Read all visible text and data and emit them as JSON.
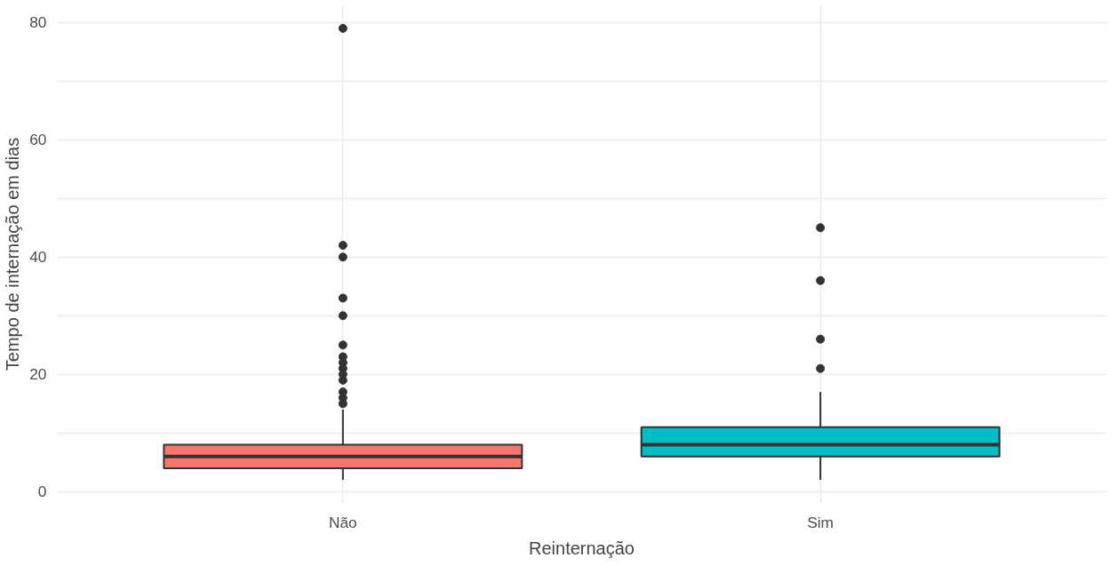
{
  "chart_data": {
    "type": "box",
    "xlabel": "Reinternação",
    "ylabel": "Tempo de internação em dias",
    "categories": [
      "Não",
      "Sim"
    ],
    "colors": [
      "#f8766d",
      "#00bfc4"
    ],
    "boxes": [
      {
        "low": 2,
        "q1": 4,
        "median": 6,
        "q3": 8,
        "high": 14,
        "outliers": [
          79,
          42,
          40,
          33,
          30,
          25,
          23,
          22,
          21,
          20,
          19,
          17,
          16,
          15
        ]
      },
      {
        "low": 2,
        "q1": 6,
        "median": 8,
        "q3": 11,
        "high": 17,
        "outliers": [
          45,
          36,
          26,
          21
        ]
      }
    ],
    "ylim": [
      -2,
      83
    ],
    "yticks": [
      0,
      {
        "value": 10,
        "label": null
      },
      20,
      {
        "value": 30,
        "label": null
      },
      40,
      {
        "value": 50,
        "label": null
      },
      60,
      {
        "value": 70,
        "label": null
      },
      80
    ],
    "grid": true
  }
}
